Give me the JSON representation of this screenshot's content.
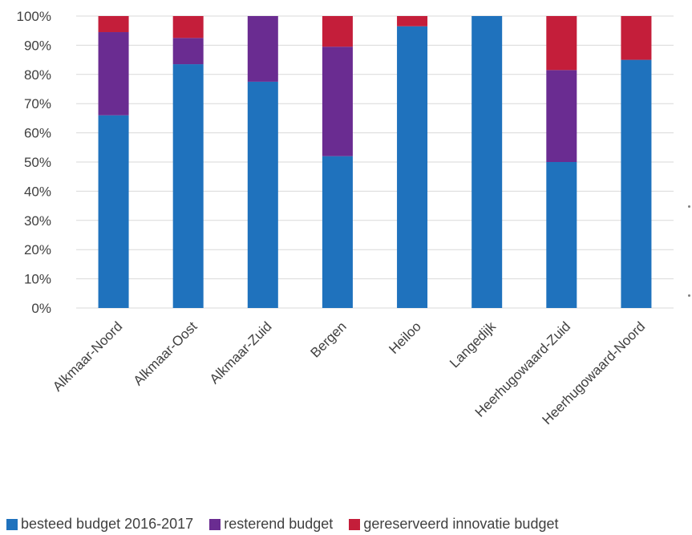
{
  "chart_data": {
    "type": "bar",
    "stacked": true,
    "percent": true,
    "title": "",
    "xlabel": "",
    "ylabel": "",
    "ylim": [
      0,
      100
    ],
    "y_ticks": [
      "0%",
      "10%",
      "20%",
      "30%",
      "40%",
      "50%",
      "60%",
      "70%",
      "80%",
      "90%",
      "100%"
    ],
    "grid": true,
    "legend_position": "bottom",
    "categories": [
      "Alkmaar-Noord",
      "Alkmaar-Oost",
      "Alkmaar-Zuid",
      "Bergen",
      "Heiloo",
      "Langedijk",
      "Heerhugowaard-Zuid",
      "Heerhugowaard-Noord"
    ],
    "series": [
      {
        "name": "besteed budget 2016-2017",
        "color": "#1f72bd",
        "values": [
          66,
          83.5,
          77.5,
          52,
          96.5,
          100,
          50,
          85
        ]
      },
      {
        "name": "resterend budget",
        "color": "#6a2c91",
        "values": [
          28.5,
          9,
          22.5,
          37.5,
          0,
          0,
          31.5,
          0
        ]
      },
      {
        "name": "gereserveerd  innovatie budget",
        "color": "#c41e3a",
        "values": [
          5.5,
          7.5,
          0,
          10.5,
          3.5,
          0,
          18.5,
          15
        ]
      }
    ]
  }
}
